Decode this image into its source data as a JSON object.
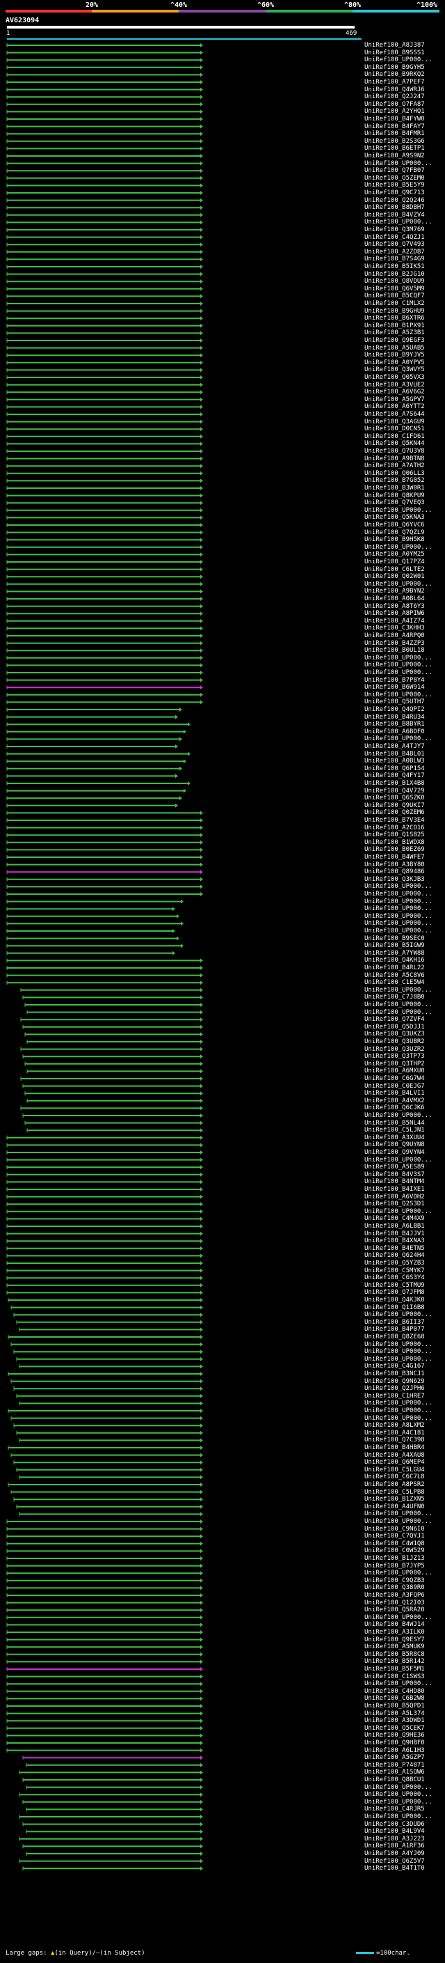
{
  "scale": {
    "ticks": [
      "20%",
      "^40%",
      "^60%",
      "^80%",
      "^100%"
    ],
    "colors": [
      "#ff3030",
      "#f39c12",
      "#8e44ad",
      "#27ae60",
      "#26c6da"
    ]
  },
  "query": {
    "title": "AV623094",
    "start": "1",
    "end": "469"
  },
  "colors": {
    "hit": "#3fbf3f",
    "highlight": "#cc33cc",
    "gap_mark": "#ffd700"
  },
  "hits": [
    "UniRef100_A8J387",
    "UniRef100_B9SSS1",
    "UniRef100_UP000...",
    "UniRef100_B9GYH5",
    "UniRef100_B9RKQ2",
    "UniRef100_A7PEF7",
    "UniRef100_Q4WRJ6",
    "UniRef100_Q2J247",
    "UniRef100_Q7FA87",
    "UniRef100_A2YHQ1",
    "UniRef100_B4FYW0",
    "UniRef100_B4FAY7",
    "UniRef100_B4FMR1",
    "UniRef100_B2S3G6",
    "UniRef100_B6ETP1",
    "UniRef100_A9S9N2",
    "UniRef100_UP000...",
    "UniRef100_Q7FB07",
    "UniRef100_Q5ZEM0",
    "UniRef100_B5E5Y9",
    "UniRef100_Q9C713",
    "UniRef100_Q2Q246",
    "UniRef100_B8DBH7",
    "UniRef100_B4VZV4",
    "UniRef100_UP000...",
    "UniRef100_Q3M769",
    "UniRef100_C4QZJ1",
    "UniRef100_Q7V493",
    "UniRef100_A2ZDB7",
    "UniRef100_B7S4G9",
    "UniRef100_B5IK51",
    "UniRef100_B2JG10",
    "UniRef100_Q8VDU9",
    "UniRef100_Q6V5M9",
    "UniRef100_B5CQF7",
    "UniRef100_C1MLX2",
    "UniRef100_B9GHU9",
    "UniRef100_B6XTR6",
    "UniRef100_B1PX91",
    "UniRef100_A5Z3B1",
    "UniRef100_Q9EGF3",
    "UniRef100_A5UAB5",
    "UniRef100_B9YJV5",
    "UniRef100_A0YPV5",
    "UniRef100_Q3WVY5",
    "UniRef100_Q05VX3",
    "UniRef100_A3VUE2",
    "UniRef100_A6V6G2",
    "UniRef100_A5GPV7",
    "UniRef100_A6YTT2",
    "UniRef100_A7S644",
    "UniRef100_Q3AGU9",
    "UniRef100_D0CN51",
    "UniRef100_C1FD61",
    "UniRef100_Q5KN44",
    "UniRef100_Q7U3V8",
    "UniRef100_A9BTN8",
    "UniRef100_A7ATH2",
    "UniRef100_Q06LL3",
    "UniRef100_B7G052",
    "UniRef100_B3W0R1",
    "UniRef100_Q8KPU9",
    "UniRef100_Q7VEQ3",
    "UniRef100_UP000...",
    "UniRef100_Q5KNA3",
    "UniRef100_Q6YVC6",
    "UniRef100_Q7QZL9",
    "UniRef100_B9H5K8",
    "UniRef100_UP000...",
    "UniRef100_A0YM25",
    "UniRef100_Q17PZ4",
    "UniRef100_C6LTE2",
    "UniRef100_Q02W01",
    "UniRef100_UP000...",
    "UniRef100_A9BYN2",
    "UniRef100_A0BL64",
    "UniRef100_A8T6Y3",
    "UniRef100_A8PIW6",
    "UniRef100_A4IZ74",
    "UniRef100_C3KHH3",
    "UniRef100_A4RPQ0",
    "UniRef100_B4ZZP3",
    "UniRef100_B0UL18",
    "UniRef100_UP000...",
    "UniRef100_UP000...",
    "UniRef100_UP000...",
    "UniRef100_B7P8Y4",
    "UniRef100_B6W914",
    "UniRef100_UP000...",
    "UniRef100_Q5UTH7",
    "UniRef100_Q4QPI2",
    "UniRef100_B4RU34",
    "UniRef100_B8BYR1",
    "UniRef100_A6BDF0",
    "UniRef100_UP000...",
    "UniRef100_A4TJY7",
    "UniRef100_B4BL01",
    "UniRef100_A0BLW3",
    "UniRef100_Q6P154",
    "UniRef100_Q4FY17",
    "UniRef100_B1X4B8",
    "UniRef100_Q4V729",
    "UniRef100_Q6SZK0",
    "UniRef100_Q9UKI7",
    "UniRef100_Q0ZEM6",
    "UniRef100_B7V3E4",
    "UniRef100_A2CO16",
    "UniRef100_Q1S825",
    "UniRef100_B1WDX8",
    "UniRef100_B0EZ69",
    "UniRef100_B4WFE7",
    "UniRef100_A3BY80",
    "UniRef100_Q89486",
    "UniRef100_Q3KJB3",
    "UniRef100_UP000...",
    "UniRef100_UP000...",
    "UniRef100_UP000...",
    "UniRef100_UP000...",
    "UniRef100_UP000...",
    "UniRef100_UP000...",
    "UniRef100_UP000...",
    "UniRef100_B9SEC0",
    "UniRef100_B5IGW9",
    "UniRef100_A7YW88",
    "UniRef100_Q4KH16",
    "UniRef100_B4RL22",
    "UniRef100_A5C8V6",
    "UniRef100_C1E5W4",
    "UniRef100_UP000...",
    "UniRef100_C7J8B0",
    "UniRef100_UP000...",
    "UniRef100_UP000...",
    "UniRef100_Q7ZVF4",
    "UniRef100_Q5DJJ1",
    "UniRef100_Q3UKZ3",
    "UniRef100_Q3UBR2",
    "UniRef100_Q3UZR2",
    "UniRef100_Q3TP73",
    "UniRef100_Q3THP2",
    "UniRef100_A6MXU0",
    "UniRef100_C6G7W4",
    "UniRef100_C0EJG7",
    "UniRef100_B4LVI1",
    "UniRef100_A4VMX2",
    "UniRef100_Q6CJK6",
    "UniRef100_UP000...",
    "UniRef100_B5NL44",
    "UniRef100_C5LJN1",
    "UniRef100_A3XUU4",
    "UniRef100_Q9UYN8",
    "UniRef100_Q9VYN4",
    "UniRef100_UP000...",
    "UniRef100_A5ES89",
    "UniRef100_B4V3S7",
    "UniRef100_B4NTM4",
    "UniRef100_B4IXE1",
    "UniRef100_A6VDH2",
    "UniRef100_Q2S3D1",
    "UniRef100_UP000...",
    "UniRef100_C4M4X9",
    "UniRef100_A6LBB1",
    "UniRef100_B4JJV1",
    "UniRef100_B4XNA3",
    "UniRef100_B4ETN5",
    "UniRef100_Q624H4",
    "UniRef100_Q5YZB3",
    "UniRef100_C5MYK7",
    "UniRef100_C6S3Y4",
    "UniRef100_C5TMU9",
    "UniRef100_Q7JFM8",
    "UniRef100_Q4KJK0",
    "UniRef100_Q1I6B8",
    "UniRef100_UP000...",
    "UniRef100_B6II37",
    "UniRef100_B4P077",
    "UniRef100_Q8ZE68",
    "UniRef100_UP000...",
    "UniRef100_UP000...",
    "UniRef100_UP000...",
    "UniRef100_C4G167",
    "UniRef100_B3NCJ1",
    "UniRef100_Q9N629",
    "UniRef100_Q2JPH6",
    "UniRef100_C1HRE7",
    "UniRef100_UP000...",
    "UniRef100_UP000...",
    "UniRef100_UP000...",
    "UniRef100_A8LXM2",
    "UniRef100_A4C181",
    "UniRef100_Q7C398",
    "UniRef100_B4HBR4",
    "UniRef100_A4XAU8",
    "UniRef100_Q6MEP4",
    "UniRef100_C5LGU4",
    "UniRef100_C6C7L8",
    "UniRef100_A8PSR2",
    "UniRef100_C5LPB8",
    "UniRef100_B1ZXN5",
    "UniRef100_A4UFN0",
    "UniRef100_UP000...",
    "UniRef100_UP000...",
    "UniRef100_C9N6I0",
    "UniRef100_C7QYJ1",
    "UniRef100_C4W1Q8",
    "UniRef100_C0W529",
    "UniRef100_B1JZ13",
    "UniRef100_B7JYP5",
    "UniRef100_UP000...",
    "UniRef100_C9QZB3",
    "UniRef100_Q389R0",
    "UniRef100_A3FQP6",
    "UniRef100_Q12I03",
    "UniRef100_Q5RA20",
    "UniRef100_UP000...",
    "UniRef100_B4WJ14",
    "UniRef100_A3ILK0",
    "UniRef100_Q9ESY7",
    "UniRef100_A5MUK9",
    "UniRef100_B5R8C8",
    "UniRef100_B5R142",
    "UniRef100_B5F5M1",
    "UniRef100_C1SWS3",
    "UniRef100_UP000...",
    "UniRef100_C4HD80",
    "UniRef100_C6B2W8",
    "UniRef100_B5QPD1",
    "UniRef100_A5L374",
    "UniRef100_A3DWD1",
    "UniRef100_Q5CEK7",
    "UniRef100_Q9HE36",
    "UniRef100_Q9HBF0",
    "UniRef100_A6L1H3",
    "UniRef100_A5GZP7",
    "UniRef100_P74871",
    "UniRef100_A1SQW6",
    "UniRef100_Q8BCU1",
    "UniRef100_UP000...",
    "UniRef100_UP000...",
    "UniRef100_UP000...",
    "UniRef100_C4RJR5",
    "UniRef100_UP000...",
    "UniRef100_C3DUD6",
    "UniRef100_B4L9V4",
    "UniRef100_A3J223",
    "UniRef100_A1RF36",
    "UniRef100_A4YJ09",
    "UniRef100_Q6Z5V7",
    "UniRef100_B4T1T0"
  ],
  "footer": {
    "legend_prefix": "Large gaps: ",
    "query_mark": "▲",
    "legend_query": "(in Query)/",
    "subject_mark": "—",
    "legend_subject": "(in Subject)",
    "scale_label": "=100char."
  }
}
